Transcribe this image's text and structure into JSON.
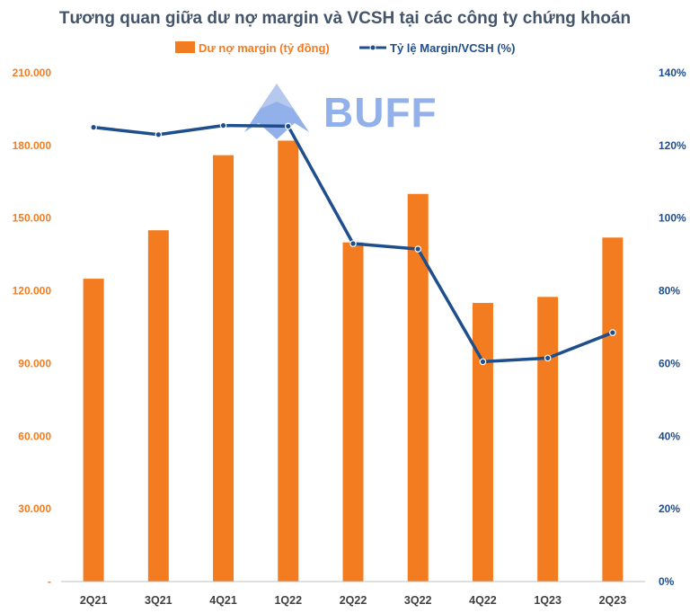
{
  "chart_data": {
    "type": "bar+line",
    "title": "Tương quan giữa dư nợ margin và VCSH tại các công ty chứng khoán",
    "categories": [
      "2Q21",
      "3Q21",
      "4Q21",
      "1Q22",
      "2Q22",
      "3Q22",
      "4Q22",
      "1Q23",
      "2Q23"
    ],
    "series": [
      {
        "name": "Dư nợ margin (tỷ đồng)",
        "type": "bar",
        "axis": "left",
        "color": "#F47C20",
        "values": [
          125000,
          145000,
          176000,
          182000,
          140000,
          160000,
          115000,
          117500,
          142000
        ]
      },
      {
        "name": "Tỷ lệ Margin/VCSH (%)",
        "type": "line",
        "axis": "right",
        "color": "#1F4E8C",
        "values": [
          125,
          123,
          125.5,
          125.3,
          93,
          91.5,
          60.5,
          61.5,
          68.5
        ]
      }
    ],
    "y_left": {
      "min": 0,
      "max": 210000,
      "ticks": [
        0,
        30000,
        60000,
        90000,
        120000,
        150000,
        180000,
        210000
      ],
      "tick_labels": [
        "-",
        "30.000",
        "60.000",
        "90.000",
        "120.000",
        "150.000",
        "180.000",
        "210.000"
      ]
    },
    "y_right": {
      "min": 0,
      "max": 140,
      "ticks": [
        0,
        20,
        40,
        60,
        80,
        100,
        120,
        140
      ],
      "tick_labels": [
        "0%",
        "20%",
        "40%",
        "60%",
        "80%",
        "100%",
        "120%",
        "140%"
      ]
    },
    "legend_position": "top-center",
    "grid": false
  },
  "watermark": {
    "text": "BUFF",
    "color": "#7FA3E6"
  }
}
